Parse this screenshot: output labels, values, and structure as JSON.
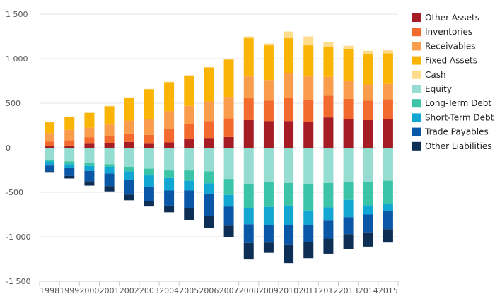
{
  "chart_data": {
    "type": "bar",
    "stacked": true,
    "title": "",
    "xlabel": "",
    "ylabel": "",
    "ylim": [
      -1500,
      1500
    ],
    "yticks": [
      1500,
      1000,
      500,
      0,
      -500,
      -1000,
      -1500
    ],
    "ytick_labels": [
      "1 500",
      "1 000",
      "500",
      "0",
      "-500",
      "-1 000",
      "-1 500"
    ],
    "grid": true,
    "legend_position": "right",
    "categories": [
      "1998",
      "1999",
      "2000",
      "2001",
      "2002",
      "2003",
      "2004",
      "2005",
      "2006",
      "2007",
      "2008",
      "2009",
      "2010",
      "2011",
      "2012",
      "2013",
      "2014",
      "2015"
    ],
    "series": [
      {
        "name": "Other Assets",
        "color": "#a51c24",
        "values": [
          20,
          25,
          45,
          50,
          65,
          45,
          60,
          95,
          110,
          120,
          310,
          300,
          300,
          290,
          340,
          320,
          310,
          320
        ]
      },
      {
        "name": "Inventories",
        "color": "#f26a2d",
        "values": [
          50,
          60,
          70,
          80,
          95,
          100,
          150,
          170,
          190,
          210,
          245,
          230,
          260,
          250,
          245,
          230,
          220,
          225
        ]
      },
      {
        "name": "Receivables",
        "color": "#f99c4b",
        "values": [
          95,
          115,
          110,
          130,
          145,
          180,
          200,
          205,
          220,
          240,
          245,
          230,
          280,
          260,
          210,
          200,
          180,
          170
        ]
      },
      {
        "name": "Fixed Assets",
        "color": "#fab405",
        "values": [
          120,
          145,
          165,
          205,
          255,
          330,
          325,
          340,
          380,
          420,
          430,
          390,
          390,
          350,
          340,
          360,
          345,
          345
        ]
      },
      {
        "name": "Cash",
        "color": "#fddc8c",
        "values": [
          5,
          5,
          5,
          5,
          5,
          5,
          5,
          5,
          5,
          5,
          20,
          20,
          75,
          100,
          50,
          35,
          35,
          35
        ]
      },
      {
        "name": "Equity",
        "color": "#96ddd1",
        "values": [
          -140,
          -155,
          -170,
          -185,
          -220,
          -235,
          -255,
          -255,
          -265,
          -350,
          -405,
          -380,
          -395,
          -405,
          -395,
          -380,
          -385,
          -370
        ]
      },
      {
        "name": "Long-Term Debt",
        "color": "#3cc4a8",
        "values": [
          -15,
          -30,
          -35,
          -35,
          -45,
          -75,
          -85,
          -115,
          -135,
          -180,
          -275,
          -285,
          -255,
          -300,
          -275,
          -205,
          -260,
          -265
        ]
      },
      {
        "name": "Short-Term Debt",
        "color": "#12a6d3",
        "values": [
          -45,
          -45,
          -55,
          -70,
          -100,
          -130,
          -140,
          -110,
          -115,
          -130,
          -180,
          -200,
          -215,
          -165,
          -150,
          -195,
          -105,
          -75
        ]
      },
      {
        "name": "Trade Payables",
        "color": "#0a57a8",
        "values": [
          -65,
          -85,
          -115,
          -140,
          -160,
          -160,
          -170,
          -200,
          -250,
          -215,
          -210,
          -200,
          -220,
          -190,
          -200,
          -190,
          -200,
          -205
        ]
      },
      {
        "name": "Other Liabilities",
        "color": "#0d2f55",
        "values": [
          -15,
          -30,
          -50,
          -60,
          -65,
          -60,
          -75,
          -130,
          -135,
          -125,
          -185,
          -115,
          -210,
          -180,
          -170,
          -165,
          -160,
          -150
        ]
      }
    ]
  }
}
